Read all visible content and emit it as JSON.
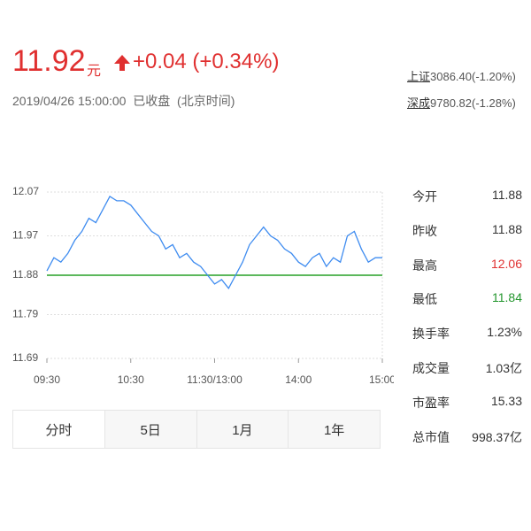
{
  "header": {
    "price": "11.92",
    "unit": "元",
    "change": "+0.04",
    "change_pct": "(+0.34%)",
    "datetime": "2019/04/26 15:00:00",
    "status": "已收盘",
    "timezone": "(北京时间)"
  },
  "indices": [
    {
      "name": "上证",
      "quote": "3086.40(-1.20%)"
    },
    {
      "name": "深成",
      "quote": "9780.82(-1.28%)"
    }
  ],
  "chart_data": {
    "type": "line",
    "categories": [
      "09:30",
      null,
      null,
      null,
      null,
      null,
      null,
      null,
      null,
      null,
      null,
      null,
      "10:30",
      null,
      null,
      null,
      null,
      null,
      null,
      null,
      null,
      null,
      null,
      null,
      "11:30/13:00",
      null,
      null,
      null,
      null,
      null,
      null,
      null,
      null,
      null,
      null,
      null,
      "14:00",
      null,
      null,
      null,
      null,
      null,
      null,
      null,
      null,
      null,
      null,
      null,
      "15:00"
    ],
    "values": [
      11.89,
      11.92,
      11.91,
      11.93,
      11.96,
      11.98,
      12.01,
      12.0,
      12.03,
      12.06,
      12.05,
      12.05,
      12.04,
      12.02,
      12.0,
      11.98,
      11.97,
      11.94,
      11.95,
      11.92,
      11.93,
      11.91,
      11.9,
      11.88,
      11.86,
      11.87,
      11.85,
      11.88,
      11.91,
      11.95,
      11.97,
      11.99,
      11.97,
      11.96,
      11.94,
      11.93,
      11.91,
      11.9,
      11.92,
      11.93,
      11.9,
      11.92,
      11.91,
      11.97,
      11.98,
      11.94,
      11.91,
      11.92,
      11.92
    ],
    "color": "#3f8cf0",
    "baseline": 11.88,
    "baseline_color": "#5cb85c",
    "ylim": [
      11.69,
      12.07
    ],
    "yticks": [
      12.07,
      11.97,
      11.88,
      11.79,
      11.69
    ],
    "grid": true
  },
  "stats": [
    {
      "label": "今开",
      "value": "11.88",
      "color": "#333333"
    },
    {
      "label": "昨收",
      "value": "11.88",
      "color": "#333333"
    },
    {
      "label": "最高",
      "value": "12.06",
      "color": "#e03030"
    },
    {
      "label": "最低",
      "value": "11.84",
      "color": "#22952c"
    },
    {
      "label": "换手率",
      "value": "1.23%",
      "color": "#333333"
    },
    {
      "label": "成交量",
      "value": "1.03亿",
      "color": "#333333"
    },
    {
      "label": "市盈率",
      "value": "15.33",
      "color": "#333333"
    },
    {
      "label": "总市值",
      "value": "998.37亿",
      "color": "#333333"
    }
  ],
  "tabs": [
    "分时",
    "5日",
    "1月",
    "1年"
  ]
}
